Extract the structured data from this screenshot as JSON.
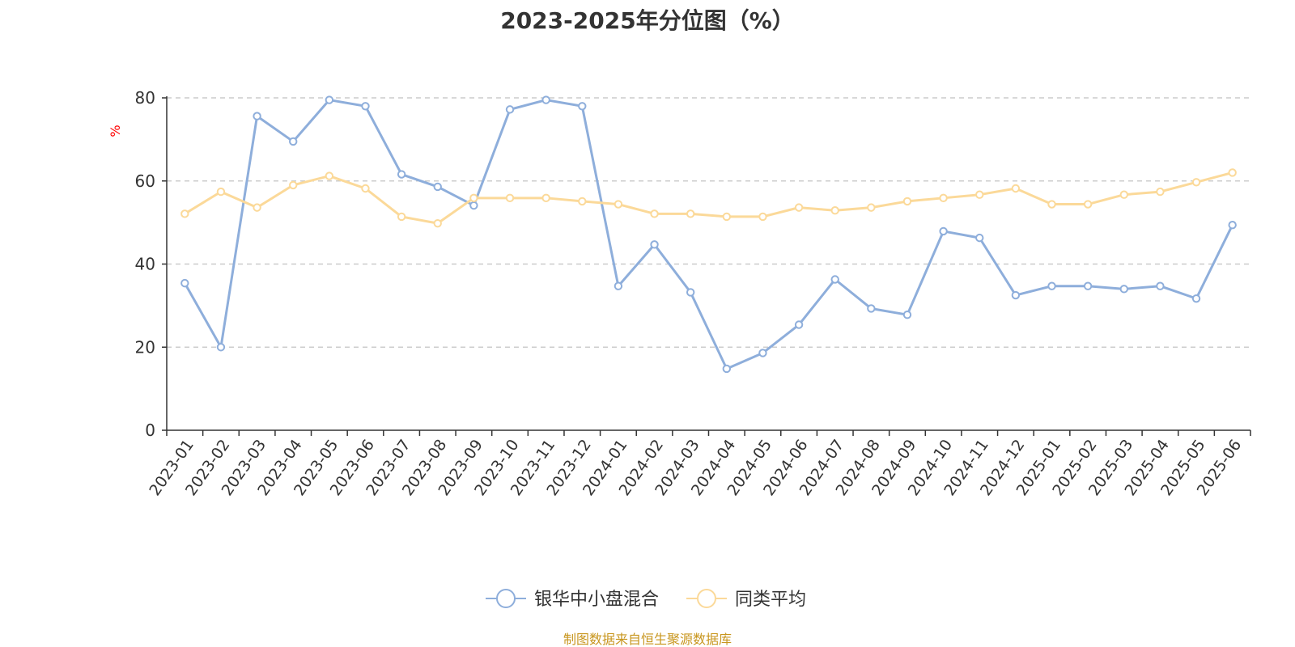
{
  "chart_data": {
    "type": "line",
    "title": "2023-2025年分位图（%）",
    "ylabel": "%",
    "ylim": [
      0,
      80
    ],
    "yticks": [
      0,
      20,
      40,
      60,
      80
    ],
    "grid": true,
    "legend_position": "bottom-center",
    "categories": [
      "2023-01",
      "2023-02",
      "2023-03",
      "2023-04",
      "2023-05",
      "2023-06",
      "2023-07",
      "2023-08",
      "2023-09",
      "2023-10",
      "2023-11",
      "2023-12",
      "2024-01",
      "2024-02",
      "2024-03",
      "2024-04",
      "2024-05",
      "2024-06",
      "2024-07",
      "2024-08",
      "2024-09",
      "2024-10",
      "2024-11",
      "2024-12",
      "2025-01",
      "2025-02",
      "2025-03",
      "2025-04",
      "2025-05",
      "2025-06"
    ],
    "series": [
      {
        "name": "银华中小盘混合",
        "color": "#8eaedb",
        "values": [
          35.4,
          20.0,
          75.6,
          69.5,
          79.5,
          78.0,
          61.6,
          58.6,
          54.1,
          77.2,
          79.5,
          78.0,
          34.7,
          44.7,
          33.2,
          14.8,
          18.6,
          25.4,
          36.3,
          29.3,
          27.8,
          47.9,
          46.3,
          32.5,
          34.7,
          34.7,
          34.0,
          34.7,
          31.7,
          49.4
        ]
      },
      {
        "name": "同类平均",
        "color": "#fbd999",
        "values": [
          52.1,
          57.4,
          53.6,
          59.0,
          61.2,
          58.2,
          51.4,
          49.8,
          55.9,
          55.9,
          55.9,
          55.1,
          54.4,
          52.1,
          52.1,
          51.4,
          51.4,
          53.6,
          52.9,
          53.6,
          55.1,
          55.9,
          56.7,
          58.2,
          54.4,
          54.4,
          56.7,
          57.4,
          59.7,
          62.0
        ]
      }
    ]
  },
  "source": {
    "text": "制图数据来自恒生聚源数据库",
    "color": "#c8961e"
  },
  "unit_color": "#ff0000",
  "grid_color": "#cccccc",
  "axis_color": "#333333"
}
